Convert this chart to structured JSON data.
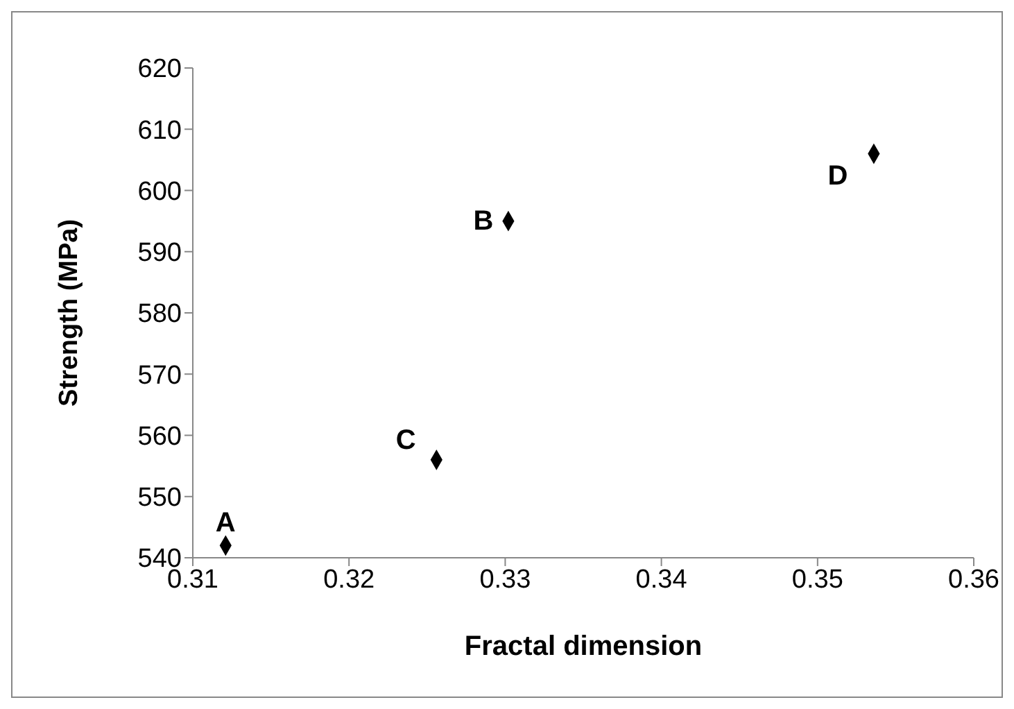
{
  "chart_data": {
    "type": "scatter",
    "xlabel": "Fractal dimension",
    "ylabel": "Strength (MPa)",
    "x": [
      0.3121,
      0.3256,
      0.3302,
      0.3536
    ],
    "values": [
      542,
      556,
      595,
      606
    ],
    "color": "#000000",
    "marker": "diamond",
    "grid": false,
    "legend": false,
    "xlim": [
      0.31,
      0.36
    ],
    "xticks": [
      0.31,
      0.32,
      0.33,
      0.34,
      0.35,
      0.36
    ],
    "ylim": [
      540,
      620
    ],
    "yticks": [
      540,
      550,
      560,
      570,
      580,
      590,
      600,
      610,
      620
    ],
    "annotations": [
      {
        "text": "A",
        "x": 0.3121,
        "y": 542
      },
      {
        "text": "C",
        "x": 0.3256,
        "y": 556
      },
      {
        "text": "B",
        "x": 0.3302,
        "y": 595
      },
      {
        "text": "D",
        "x": 0.3536,
        "y": 606
      }
    ]
  }
}
